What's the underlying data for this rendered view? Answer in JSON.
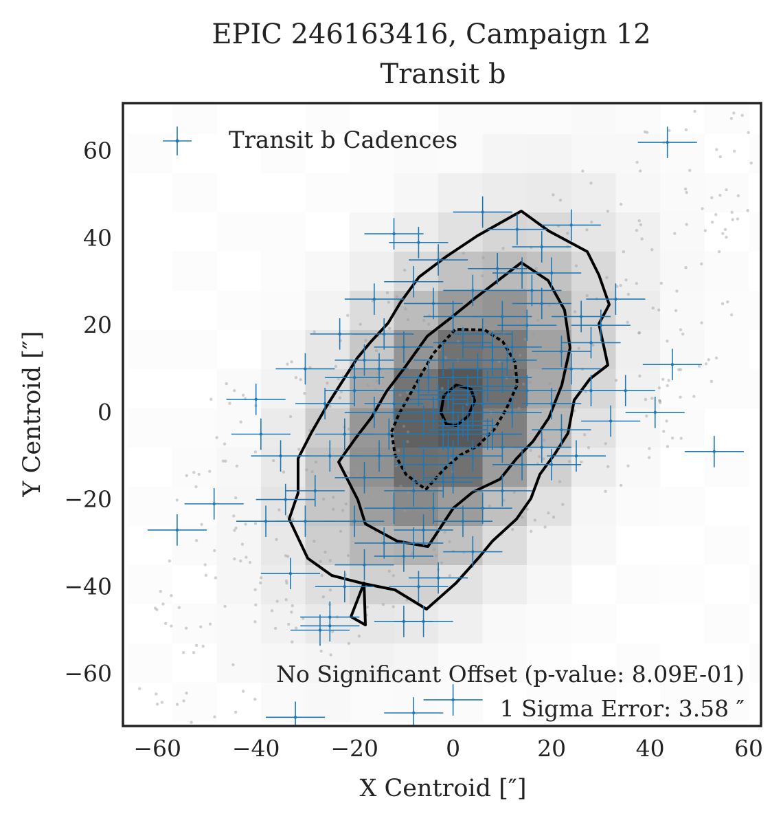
{
  "chart_data": {
    "type": "scatter",
    "title": "EPIC 246163416, Campaign 12",
    "subtitle": "Transit b",
    "xlabel": "X Centroid [″]",
    "ylabel": "Y Centroid [″]",
    "xlim": [
      -67,
      62.5
    ],
    "ylim": [
      -72,
      71
    ],
    "xticks": [
      -60,
      -40,
      -20,
      0,
      20,
      40,
      60
    ],
    "yticks": [
      -60,
      -40,
      -20,
      0,
      20,
      40,
      60
    ],
    "xtick_labels": [
      "−60",
      "−40",
      "−20",
      "0",
      "20",
      "40",
      "60"
    ],
    "ytick_labels": [
      "−60",
      "−40",
      "−20",
      "0",
      "20",
      "40",
      "60"
    ],
    "grid": false,
    "legend": {
      "position": "top-left",
      "entries": [
        "Transit b Cadences"
      ]
    },
    "annotations": [
      "No Significant Offset (p-value: 8.09E-01)",
      "1 Sigma Error: 3.58 ″"
    ],
    "series_color": "#1f77b4",
    "error_x": 6,
    "error_y": 3.6,
    "series": [
      {
        "name": "Transit b Cadences",
        "points": [
          [
            43.5,
            62
          ],
          [
            53,
            -9
          ],
          [
            44.5,
            11
          ],
          [
            41,
            0
          ],
          [
            35,
            5
          ],
          [
            -56,
            -27
          ],
          [
            -48.5,
            -21
          ],
          [
            -40,
            3
          ],
          [
            -39,
            -5
          ],
          [
            -35,
            -10
          ],
          [
            -38,
            -25
          ],
          [
            -34,
            -20
          ],
          [
            -33,
            -37
          ],
          [
            -32,
            -70
          ],
          [
            -27,
            -50
          ],
          [
            -25,
            -47
          ],
          [
            -25,
            -49
          ],
          [
            -23,
            18
          ],
          [
            -16,
            26
          ],
          [
            -12,
            41
          ],
          [
            -10,
            -48
          ],
          [
            -7,
            39
          ],
          [
            -6,
            -48
          ],
          [
            -8,
            -69
          ],
          [
            0,
            -66
          ],
          [
            6,
            46
          ],
          [
            18,
            38
          ],
          [
            24,
            43
          ],
          [
            -7,
            -40
          ],
          [
            -3,
            -38
          ],
          [
            -18,
            12
          ],
          [
            -20,
            5
          ],
          [
            -15,
            10
          ],
          [
            -10,
            15
          ],
          [
            -5,
            8
          ],
          [
            -3,
            3
          ],
          [
            0,
            0
          ],
          [
            2,
            -2
          ],
          [
            -2,
            -5
          ],
          [
            3,
            5
          ],
          [
            5,
            10
          ],
          [
            8,
            12
          ],
          [
            10,
            8
          ],
          [
            12,
            15
          ],
          [
            15,
            20
          ],
          [
            18,
            25
          ],
          [
            14,
            32
          ],
          [
            -13,
            -5
          ],
          [
            -15,
            -10
          ],
          [
            -18,
            -15
          ],
          [
            -8,
            -18
          ],
          [
            -4,
            -22
          ],
          [
            0,
            -15
          ],
          [
            4,
            -10
          ],
          [
            8,
            -5
          ],
          [
            12,
            0
          ],
          [
            15,
            5
          ],
          [
            20,
            2
          ],
          [
            24,
            10
          ],
          [
            28,
            16
          ],
          [
            26,
            22
          ],
          [
            30,
            20
          ],
          [
            33,
            26
          ],
          [
            22,
            14
          ],
          [
            -22,
            -5
          ],
          [
            -25,
            -10
          ],
          [
            -28,
            -18
          ],
          [
            -30,
            -25
          ],
          [
            -20,
            -25
          ],
          [
            -14,
            -30
          ],
          [
            -10,
            -33
          ],
          [
            -6,
            -27
          ],
          [
            2,
            -25
          ],
          [
            6,
            -22
          ],
          [
            10,
            -18
          ],
          [
            14,
            -12
          ],
          [
            18,
            -8
          ],
          [
            22,
            -4
          ],
          [
            25,
            -10
          ],
          [
            20,
            -12
          ],
          [
            -4,
            25
          ],
          [
            0,
            22
          ],
          [
            4,
            28
          ],
          [
            -8,
            30
          ],
          [
            10,
            22
          ],
          [
            6,
            18
          ],
          [
            -12,
            2
          ],
          [
            -6,
            -2
          ],
          [
            -2,
            12
          ],
          [
            2,
            16
          ],
          [
            6,
            2
          ],
          [
            10,
            -8
          ],
          [
            -10,
            -10
          ],
          [
            -6,
            -12
          ],
          [
            -1,
            -8
          ],
          [
            3,
            -3
          ],
          [
            7,
            6
          ],
          [
            11,
            12
          ],
          [
            -16,
            0
          ],
          [
            -20,
            8
          ],
          [
            -14,
            18
          ],
          [
            -30,
            10
          ],
          [
            -26,
            2
          ],
          [
            28,
            5
          ],
          [
            32,
            -2
          ],
          [
            16,
            28
          ],
          [
            20,
            32
          ],
          [
            -12,
            -22
          ],
          [
            -8,
            -30
          ],
          [
            4,
            -32
          ],
          [
            -3,
            35
          ],
          [
            9,
            33
          ],
          [
            13,
            42
          ],
          [
            -18,
            -35
          ],
          [
            -22,
            -40
          ],
          [
            -1,
            4
          ],
          [
            1,
            -4
          ],
          [
            -4,
            0
          ],
          [
            4,
            0
          ],
          [
            0,
            8
          ],
          [
            0,
            -10
          ],
          [
            -7,
            5
          ],
          [
            7,
            -5
          ],
          [
            -2,
            -16
          ],
          [
            8,
            15
          ]
        ]
      }
    ]
  }
}
